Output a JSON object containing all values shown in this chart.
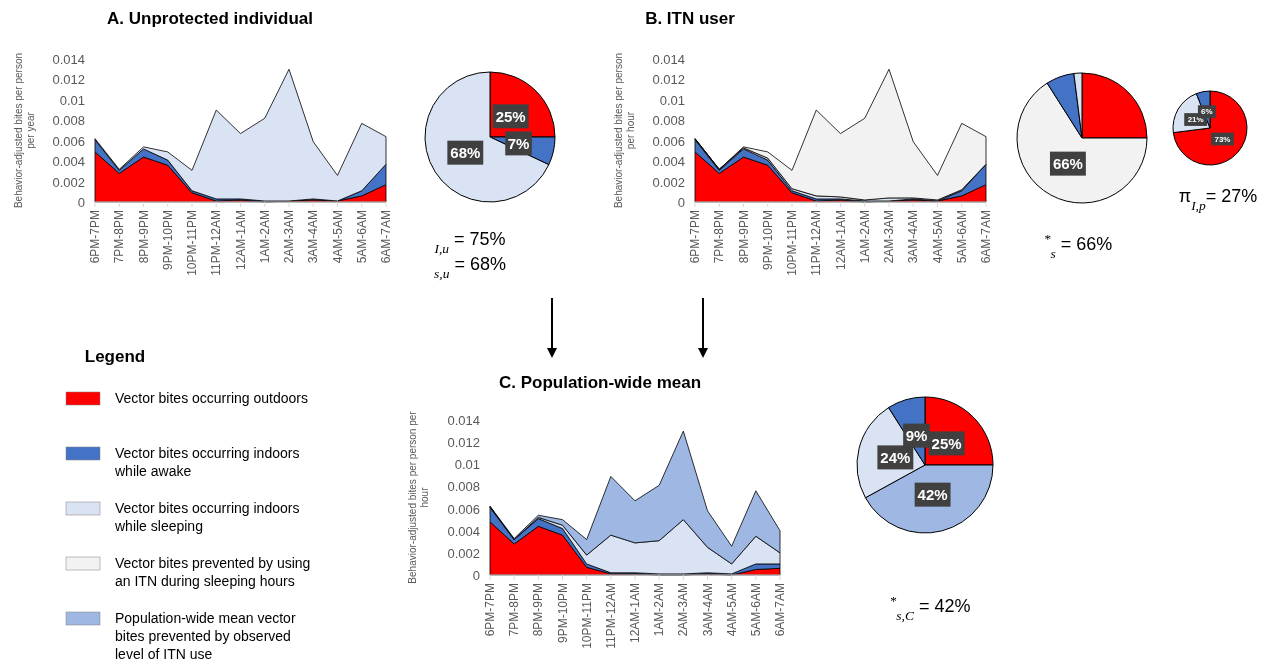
{
  "chart_data": [
    {
      "type": "area",
      "title": "A. Unprotected individual",
      "ylabel": "Behavior-adjusted bites per person per year",
      "stacked": true,
      "ylim": [
        0,
        0.014
      ],
      "yticks": [
        0,
        0.002,
        0.004,
        0.006,
        0.008,
        0.01,
        0.012,
        0.014
      ],
      "categories": [
        "6PM-7PM",
        "7PM-8PM",
        "8PM-9PM",
        "9PM-10PM",
        "10PM-11PM",
        "11PM-12AM",
        "12AM-1AM",
        "1AM-2AM",
        "2AM-3AM",
        "3AM-4AM",
        "4AM-5AM",
        "5AM-6AM",
        "6AM-7AM"
      ],
      "series": [
        {
          "color": "#ff0000",
          "values": [
            0.0049,
            0.0028,
            0.0044,
            0.0036,
            0.0009,
            0.0001,
            0.0002,
            0.0,
            0.0001,
            0.0002,
            0.0001,
            0.0006,
            0.0017
          ]
        },
        {
          "color": "#4472c4",
          "values": [
            0.0012,
            0.0003,
            0.0008,
            0.0005,
            0.0002,
            0.0002,
            0.0001,
            0.0001,
            0.0,
            0.0001,
            0.0,
            0.0005,
            0.002
          ]
        },
        {
          "color": "#dae3f3",
          "values": [
            0.0001,
            0.0001,
            0.0002,
            0.0008,
            0.002,
            0.0087,
            0.0064,
            0.0081,
            0.0129,
            0.0056,
            0.0025,
            0.0066,
            0.0027
          ]
        }
      ]
    },
    {
      "type": "pie",
      "categories": [
        null,
        null,
        null
      ],
      "values": [
        25,
        7,
        68
      ],
      "colors": [
        "#ff0000",
        "#4472c4",
        "#dae3f3"
      ],
      "value_labels": [
        "25%",
        "7%",
        "68%"
      ],
      "annotations": [
        "$_{I,u}$ =  75%",
        "$_{s,u}$ =  68%"
      ]
    },
    {
      "type": "area",
      "title": "B. ITN user",
      "ylabel": "Behavior-adjusted bites per person per hour",
      "stacked": true,
      "ylim": [
        0,
        0.014
      ],
      "yticks": [
        0,
        0.002,
        0.004,
        0.006,
        0.008,
        0.01,
        0.012,
        0.014
      ],
      "categories": [
        "6PM-7PM",
        "7PM-8PM",
        "8PM-9PM",
        "9PM-10PM",
        "10PM-11PM",
        "11PM-12AM",
        "12AM-1AM",
        "1AM-2AM",
        "2AM-3AM",
        "3AM-4AM",
        "4AM-5AM",
        "5AM-6AM",
        "6AM-7AM"
      ],
      "series": [
        {
          "color": "#ff0000",
          "values": [
            0.0049,
            0.0028,
            0.0044,
            0.0036,
            0.0009,
            0.0001,
            0.0002,
            0.0,
            0.0001,
            0.0002,
            0.0001,
            0.0006,
            0.0017
          ]
        },
        {
          "color": "#4472c4",
          "values": [
            0.0012,
            0.0003,
            0.0008,
            0.0005,
            0.0002,
            0.0002,
            0.0001,
            0.0001,
            0.0,
            0.0001,
            0.0,
            0.0005,
            0.002
          ]
        },
        {
          "color": "#dae3f3",
          "values": [
            0.0001,
            0.0001,
            0.0001,
            0.0002,
            0.0002,
            0.0003,
            0.0002,
            0.0001,
            0.0003,
            0.0001,
            0.0001,
            0.0001,
            0.0
          ]
        },
        {
          "color": "#f2f2f2",
          "values": [
            0.0,
            0.0,
            0.0001,
            0.0006,
            0.0018,
            0.0084,
            0.0062,
            0.008,
            0.0126,
            0.0055,
            0.0024,
            0.0065,
            0.0027
          ]
        }
      ]
    },
    {
      "type": "pie",
      "categories": [
        null,
        null,
        null,
        null
      ],
      "values": [
        25,
        66,
        7,
        2
      ],
      "colors": [
        "#ff0000",
        "#f2f2f2",
        "#4472c4",
        "#dae3f3"
      ],
      "value_labels": [
        null,
        "66%",
        null,
        null
      ],
      "annotations": [
        "$^{*}$$_{s}$ = 66%"
      ]
    },
    {
      "type": "pie",
      "categories": [
        null,
        null,
        null
      ],
      "values": [
        73,
        21,
        6
      ],
      "colors": [
        "#ff0000",
        "#dae3f3",
        "#4472c4"
      ],
      "value_labels": [
        "73%",
        "21%",
        "6%"
      ],
      "annotations": [
        "π$_{I,p}$= 27%"
      ]
    },
    {
      "type": "area",
      "title": "C. Population-wide mean",
      "ylabel": "Behavior-adjusted bites per person per hour",
      "stacked": true,
      "ylim": [
        0,
        0.014
      ],
      "yticks": [
        0,
        0.002,
        0.004,
        0.006,
        0.008,
        0.01,
        0.012,
        0.014
      ],
      "categories": [
        "6PM-7PM",
        "7PM-8PM",
        "8PM-9PM",
        "9PM-10PM",
        "10PM-11PM",
        "11PM-12AM",
        "12AM-1AM",
        "1AM-2AM",
        "2AM-3AM",
        "3AM-4AM",
        "4AM-5AM",
        "5AM-6AM",
        "6AM-7AM"
      ],
      "series": [
        {
          "color": "#ff0000",
          "values": [
            0.0048,
            0.0028,
            0.0044,
            0.0036,
            0.0007,
            0.0001,
            0.0001,
            0.0,
            0.0,
            0.0001,
            0.0,
            0.0005,
            0.0006
          ]
        },
        {
          "color": "#4472c4",
          "values": [
            0.0013,
            0.0004,
            0.0007,
            0.0006,
            0.0003,
            0.0001,
            0.0001,
            0.0001,
            0.0001,
            0.0001,
            0.0001,
            0.0005,
            0.0004
          ]
        },
        {
          "color": "#dae3f3",
          "values": [
            0.0001,
            0.0,
            0.0001,
            0.0003,
            0.0008,
            0.0034,
            0.0027,
            0.003,
            0.0049,
            0.0023,
            0.0009,
            0.0025,
            0.001
          ]
        },
        {
          "color": "#9fb8e3",
          "values": [
            0.0,
            0.0001,
            0.0002,
            0.0005,
            0.0014,
            0.0053,
            0.0038,
            0.005,
            0.008,
            0.0033,
            0.0016,
            0.0041,
            0.002
          ]
        }
      ]
    },
    {
      "type": "pie",
      "categories": [
        null,
        null,
        null,
        null
      ],
      "values": [
        25,
        42,
        24,
        9
      ],
      "colors": [
        "#ff0000",
        "#9fb8e3",
        "#dae3f3",
        "#4472c4"
      ],
      "value_labels": [
        "25%",
        "42%",
        "24%",
        "9%"
      ],
      "annotations": [
        "$^{*}$$_{s,C}$ = 42%"
      ]
    },
    {
      "type": "other",
      "title": "Legend",
      "series": [
        {
          "name": "Vector bites occurring outdoors",
          "color": "#ff0000"
        },
        {
          "name": "Vector bites occurring indoors while awake",
          "color": "#4472c4"
        },
        {
          "name": "Vector bites occurring indoors while sleeping",
          "color": "#dae3f3"
        },
        {
          "name": "Vector bites prevented by using an ITN during sleeping hours",
          "color": "#f2f2f2"
        },
        {
          "name": "Population-wide mean vector bites prevented by observed level of ITN use",
          "color": "#9fb8e3"
        }
      ]
    }
  ]
}
